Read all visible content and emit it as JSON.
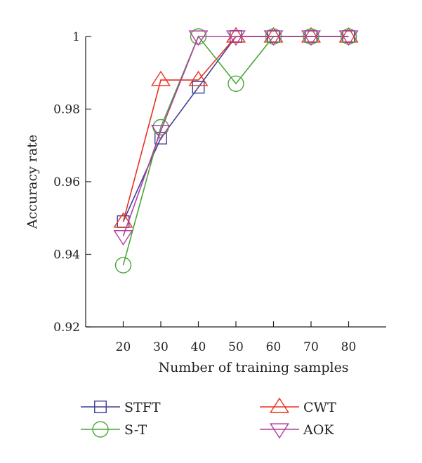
{
  "chart_data": {
    "type": "line",
    "x": [
      20,
      30,
      40,
      50,
      60,
      70,
      80
    ],
    "xlim": [
      10,
      90
    ],
    "ylim": [
      0.92,
      1.0
    ],
    "xticks": [
      "20",
      "30",
      "40",
      "50",
      "60",
      "70",
      "80"
    ],
    "yticks": [
      "0.92",
      "0.94",
      "0.96",
      "0.98",
      "1"
    ],
    "xlabel": "Number of training samples",
    "ylabel": "Accuracy rate",
    "grid": false,
    "legend_position": "bottom",
    "series": [
      {
        "name": "STFT",
        "marker": "square",
        "color": "#3b3f98",
        "values": [
          0.949,
          0.972,
          0.986,
          1.0,
          1.0,
          1.0,
          1.0
        ]
      },
      {
        "name": "CWT",
        "marker": "triangle-up",
        "color": "#e8311f",
        "values": [
          0.949,
          0.988,
          0.988,
          1.0,
          1.0,
          1.0,
          1.0
        ]
      },
      {
        "name": "S-T",
        "marker": "circle",
        "color": "#4aa63a",
        "values": [
          0.937,
          0.975,
          1.0,
          0.987,
          1.0,
          1.0,
          1.0
        ]
      },
      {
        "name": "AOK",
        "marker": "triangle-down",
        "color": "#b03ea0",
        "values": [
          0.945,
          0.974,
          1.0,
          1.0,
          1.0,
          1.0,
          1.0
        ]
      }
    ]
  }
}
